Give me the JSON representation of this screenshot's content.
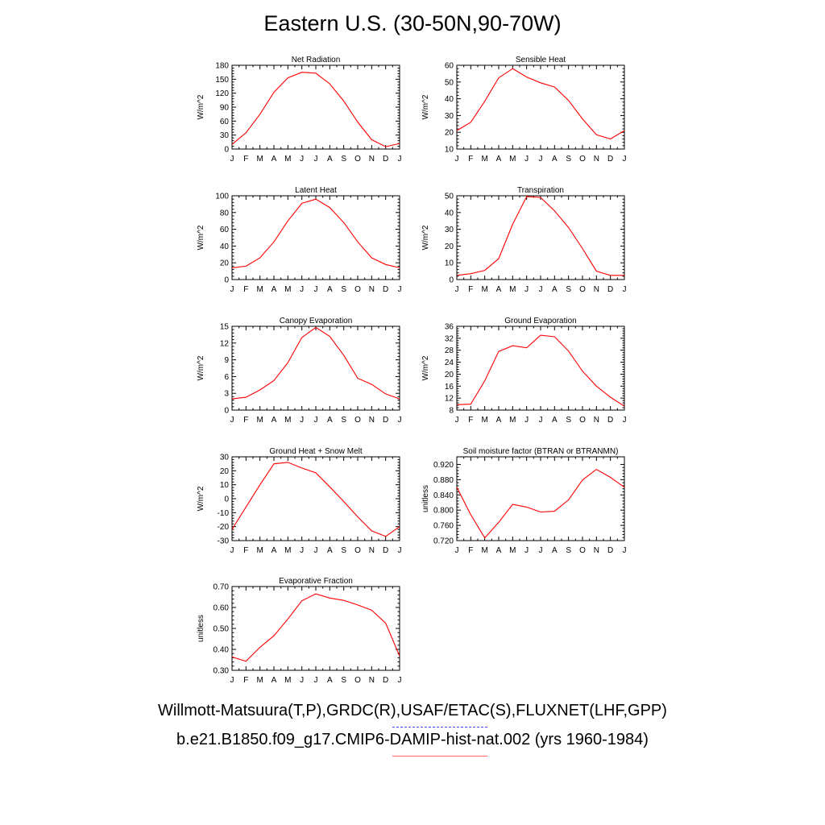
{
  "title": "Eastern U.S. (30-50N,90-70W)",
  "footer": {
    "observations": "Willmott-Matsuura(T,P),GRDC(R),USAF/ETAC(S),FLUXNET(LHF,GPP)",
    "model": "b.e21.B1850.f09_g17.CMIP6-DAMIP-hist-nat.002 (yrs 1960-1984)"
  },
  "colors": {
    "series": "#ff0000",
    "obs_legend": "#4444ff",
    "model_legend": "#ff6666"
  },
  "chart_data": [
    {
      "type": "line",
      "title": "Net Radiation",
      "ylabel": "W/m^2",
      "categories": [
        "J",
        "F",
        "M",
        "A",
        "M",
        "J",
        "J",
        "A",
        "S",
        "O",
        "N",
        "D",
        "J"
      ],
      "ylim": [
        0,
        180
      ],
      "yticks": [
        "0",
        "30",
        "60",
        "90",
        "120",
        "150",
        "180"
      ],
      "values": [
        10,
        35,
        75,
        122,
        153,
        165,
        163,
        140,
        103,
        58,
        20,
        5,
        12
      ]
    },
    {
      "type": "line",
      "title": "Sensible Heat",
      "ylabel": "W/m^2",
      "categories": [
        "J",
        "F",
        "M",
        "A",
        "M",
        "J",
        "J",
        "A",
        "S",
        "O",
        "N",
        "D",
        "J"
      ],
      "ylim": [
        10,
        60
      ],
      "yticks": [
        "10",
        "20",
        "30",
        "40",
        "50",
        "60"
      ],
      "values": [
        21,
        26,
        38.5,
        52.5,
        58,
        53,
        49.5,
        47,
        39,
        28,
        18.5,
        16,
        21
      ]
    },
    {
      "type": "line",
      "title": "Latent Heat",
      "ylabel": "W/m^2",
      "categories": [
        "J",
        "F",
        "M",
        "A",
        "M",
        "J",
        "J",
        "A",
        "S",
        "O",
        "N",
        "D",
        "J"
      ],
      "ylim": [
        0,
        100
      ],
      "yticks": [
        "0",
        "20",
        "40",
        "60",
        "80",
        "100"
      ],
      "values": [
        14,
        16,
        26,
        45,
        70,
        91,
        96,
        86,
        68,
        45,
        26,
        18,
        14
      ]
    },
    {
      "type": "line",
      "title": "Transpiration",
      "ylabel": "W/m^2",
      "categories": [
        "J",
        "F",
        "M",
        "A",
        "M",
        "J",
        "J",
        "A",
        "S",
        "O",
        "N",
        "D",
        "J"
      ],
      "ylim": [
        0,
        50
      ],
      "yticks": [
        "0",
        "10",
        "20",
        "30",
        "40",
        "50"
      ],
      "values": [
        2.5,
        3.5,
        5.5,
        12.5,
        33,
        49.5,
        49,
        41,
        31,
        18.5,
        5,
        2.5,
        2.5
      ]
    },
    {
      "type": "line",
      "title": "Canopy Evaporation",
      "ylabel": "W/m^2",
      "categories": [
        "J",
        "F",
        "M",
        "A",
        "M",
        "J",
        "J",
        "A",
        "S",
        "O",
        "N",
        "D",
        "J"
      ],
      "ylim": [
        0,
        15
      ],
      "yticks": [
        "0",
        "3",
        "6",
        "9",
        "12",
        "15"
      ],
      "values": [
        2,
        2.3,
        3.6,
        5.3,
        8.5,
        13,
        14.8,
        13.2,
        9.8,
        5.7,
        4.6,
        2.9,
        2
      ]
    },
    {
      "type": "line",
      "title": "Ground Evaporation",
      "ylabel": "W/m^2",
      "categories": [
        "J",
        "F",
        "M",
        "A",
        "M",
        "J",
        "J",
        "A",
        "S",
        "O",
        "N",
        "D",
        "J"
      ],
      "ylim": [
        8,
        36
      ],
      "yticks": [
        "8",
        "12",
        "16",
        "20",
        "24",
        "28",
        "32",
        "36"
      ],
      "values": [
        9.8,
        10,
        17.8,
        27.6,
        29.5,
        28.8,
        33,
        32.5,
        27.7,
        21,
        16,
        12.3,
        9.3
      ]
    },
    {
      "type": "line",
      "title": "Ground Heat + Snow Melt",
      "ylabel": "W/m^2",
      "categories": [
        "J",
        "F",
        "M",
        "A",
        "M",
        "J",
        "J",
        "A",
        "S",
        "O",
        "N",
        "D",
        "J"
      ],
      "ylim": [
        -30,
        30
      ],
      "yticks": [
        "-30",
        "-20",
        "-10",
        "0",
        "10",
        "20",
        "30"
      ],
      "values": [
        -22,
        -6,
        10,
        25,
        26,
        22,
        18.5,
        8.5,
        -2,
        -13,
        -23,
        -27,
        -20
      ]
    },
    {
      "type": "line",
      "title": "Soil moisture factor (BTRAN or BTRANMN)",
      "ylabel": "unitless",
      "categories": [
        "J",
        "F",
        "M",
        "A",
        "M",
        "J",
        "J",
        "A",
        "S",
        "O",
        "N",
        "D",
        "J"
      ],
      "ylim": [
        0.72,
        0.94
      ],
      "yticks": [
        "0.720",
        "0.760",
        "0.800",
        "0.840",
        "0.880",
        "0.920"
      ],
      "values": [
        0.86,
        0.788,
        0.727,
        0.768,
        0.815,
        0.808,
        0.795,
        0.797,
        0.827,
        0.879,
        0.907,
        0.886,
        0.86
      ]
    },
    {
      "type": "line",
      "title": "Evaporative Fraction",
      "ylabel": "unitless",
      "categories": [
        "J",
        "F",
        "M",
        "A",
        "M",
        "J",
        "J",
        "A",
        "S",
        "O",
        "N",
        "D",
        "J"
      ],
      "ylim": [
        0.3,
        0.7
      ],
      "yticks": [
        "0.30",
        "0.40",
        "0.50",
        "0.60",
        "0.70"
      ],
      "values": [
        0.364,
        0.343,
        0.41,
        0.465,
        0.545,
        0.632,
        0.665,
        0.645,
        0.634,
        0.612,
        0.587,
        0.525,
        0.368
      ]
    }
  ]
}
